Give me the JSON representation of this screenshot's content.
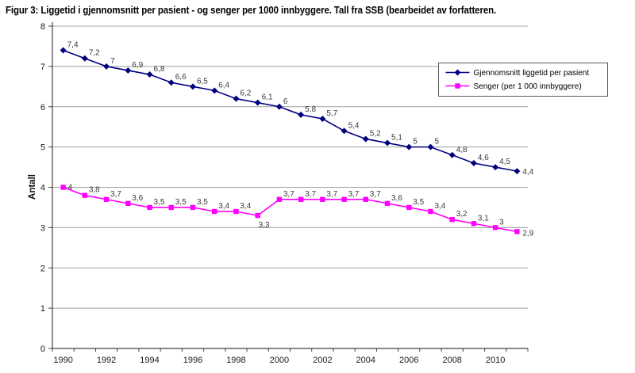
{
  "title": "Figur 3: Liggetid i gjennomsnitt per pasient - og senger per 1000 innbyggere. Tall fra SSB (bearbeidet av forfatteren.",
  "chart_data": {
    "type": "line",
    "categories": [
      1990,
      1991,
      1992,
      1993,
      1994,
      1995,
      1996,
      1997,
      1998,
      1999,
      2000,
      2001,
      2002,
      2003,
      2004,
      2005,
      2006,
      2007,
      2008,
      2009,
      2010,
      2011
    ],
    "series": [
      {
        "name": "Gjennomsnitt liggetid per pasient",
        "color": "#00007f",
        "marker": "diamond",
        "values": [
          7.4,
          7.2,
          7,
          6.9,
          6.8,
          6.6,
          6.5,
          6.4,
          6.2,
          6.1,
          6,
          5.8,
          5.7,
          5.4,
          5.2,
          5.1,
          5,
          5,
          4.8,
          4.6,
          4.5,
          4.4
        ]
      },
      {
        "name": "Senger (per 1 000 innbyggere)",
        "color": "#ff00ff",
        "marker": "square",
        "values": [
          4,
          3.8,
          3.7,
          3.6,
          3.5,
          3.5,
          3.5,
          3.4,
          3.4,
          3.3,
          3.7,
          3.7,
          3.7,
          3.7,
          3.7,
          3.6,
          3.5,
          3.4,
          3.2,
          3.1,
          3,
          2.9
        ]
      }
    ],
    "xlabel": "",
    "ylabel": "Antall",
    "ylim": [
      0,
      8
    ],
    "ytick_labels": [
      "0",
      "1",
      "2",
      "3",
      "4",
      "5",
      "6",
      "7",
      "8"
    ],
    "xtick_labels": [
      "1990",
      "1992",
      "1994",
      "1996",
      "1998",
      "2000",
      "2002",
      "2004",
      "2006",
      "2008",
      "2010"
    ],
    "xtick_label_every": 2,
    "grid": true,
    "data_labels_shown": true,
    "decimal_separator": ",",
    "legend_position": "top-right",
    "colors": {
      "gridline": "#a0a0a0",
      "axis": "#404040",
      "legend_border": "#5a5a5a",
      "background": "#ffffff"
    }
  }
}
